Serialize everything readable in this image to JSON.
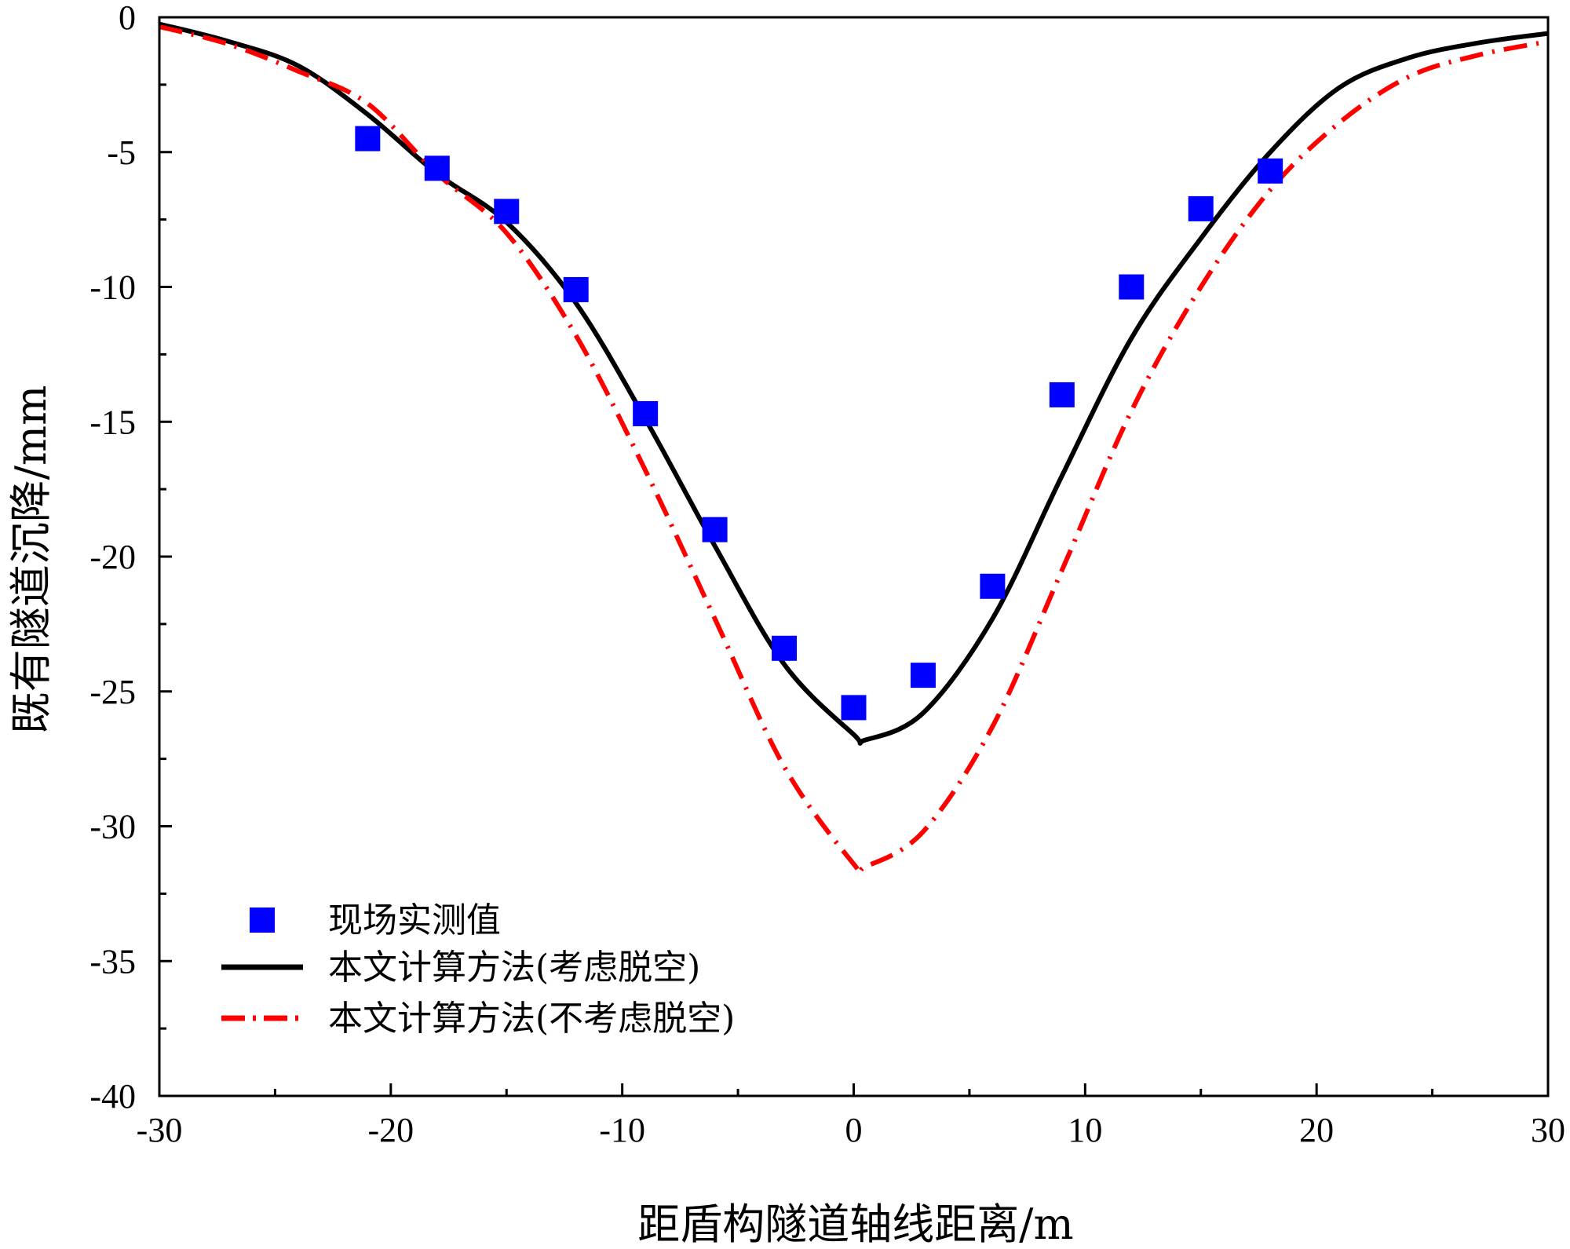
{
  "chart_data": {
    "type": "line",
    "title": "",
    "xlabel": "距盾构隧道轴线距离/m",
    "ylabel": "既有隧道沉降/mm",
    "xlim": [
      -30,
      30
    ],
    "ylim": [
      -40,
      0
    ],
    "x_ticks": [
      -30,
      -20,
      -10,
      0,
      10,
      20,
      30
    ],
    "x_tick_labels": [
      "-30",
      "-20",
      "-10",
      "0",
      "10",
      "20",
      "30"
    ],
    "y_ticks": [
      0,
      -5,
      -10,
      -15,
      -20,
      -25,
      -30,
      -35,
      -40
    ],
    "y_tick_labels": [
      "0",
      "-5",
      "-10",
      "-15",
      "-20",
      "-25",
      "-30",
      "-35",
      "-40"
    ],
    "grid": false,
    "legend_position": "bottom-left",
    "series": [
      {
        "name": "现场实测值",
        "kind": "scatter",
        "marker": "square",
        "color": "#0000ff",
        "x": [
          -21,
          -18,
          -15,
          -12,
          -9,
          -6,
          -3,
          0,
          3,
          6,
          9,
          12,
          15,
          18
        ],
        "y": [
          -4.5,
          -5.6,
          -7.2,
          -10.1,
          -14.7,
          -19.0,
          -23.4,
          -25.6,
          -24.4,
          -21.1,
          -14.0,
          -10.0,
          -7.1,
          -5.7
        ]
      },
      {
        "name": "本文计算方法(考虑脱空)",
        "kind": "line",
        "style": "solid",
        "color": "#000000",
        "x": [
          -30,
          -27,
          -24,
          -21,
          -18,
          -15,
          -12,
          -9,
          -6,
          -3,
          0,
          0.5,
          3,
          6,
          9,
          12,
          15,
          18,
          21,
          24,
          27,
          30
        ],
        "y": [
          -0.25,
          -0.9,
          -1.8,
          -3.6,
          -5.8,
          -7.6,
          -10.6,
          -14.9,
          -19.6,
          -24.0,
          -26.6,
          -26.8,
          -25.8,
          -22.3,
          -17.0,
          -11.9,
          -8.2,
          -5.0,
          -2.6,
          -1.5,
          -0.95,
          -0.6
        ]
      },
      {
        "name": "本文计算方法(不考虑脱空)",
        "kind": "line",
        "style": "dash-dot",
        "color": "#ff0000",
        "x": [
          -30,
          -27,
          -24,
          -21,
          -18,
          -15,
          -12,
          -9,
          -6,
          -3,
          0,
          0.5,
          3,
          6,
          9,
          12,
          15,
          18,
          21,
          24,
          27,
          30
        ],
        "y": [
          -0.35,
          -1.0,
          -2.0,
          -3.2,
          -5.8,
          -8.0,
          -11.8,
          -16.8,
          -22.3,
          -27.8,
          -31.4,
          -31.5,
          -30.2,
          -26.3,
          -20.5,
          -14.6,
          -10.0,
          -6.4,
          -3.9,
          -2.2,
          -1.4,
          -0.9
        ]
      }
    ]
  }
}
